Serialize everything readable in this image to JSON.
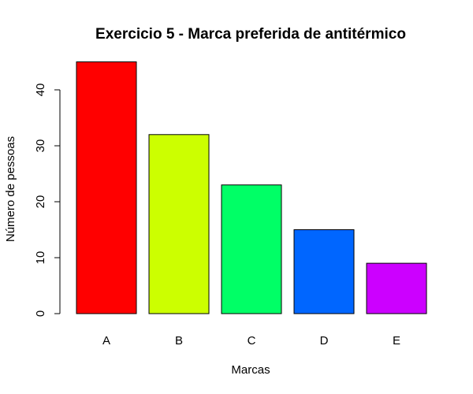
{
  "chart_data": {
    "type": "bar",
    "title": "Exercicio 5 - Marca preferida de antitérmico",
    "xlabel": "Marcas",
    "ylabel": "Número de pessoas",
    "categories": [
      "A",
      "B",
      "C",
      "D",
      "E"
    ],
    "values": [
      45,
      32,
      23,
      15,
      9
    ],
    "colors": [
      "#ff0000",
      "#ccff00",
      "#00ff66",
      "#0066ff",
      "#cc00ff"
    ],
    "ylim": [
      0,
      45
    ],
    "yticks": [
      0,
      10,
      20,
      30,
      40
    ],
    "grid": false,
    "legend": "none"
  }
}
